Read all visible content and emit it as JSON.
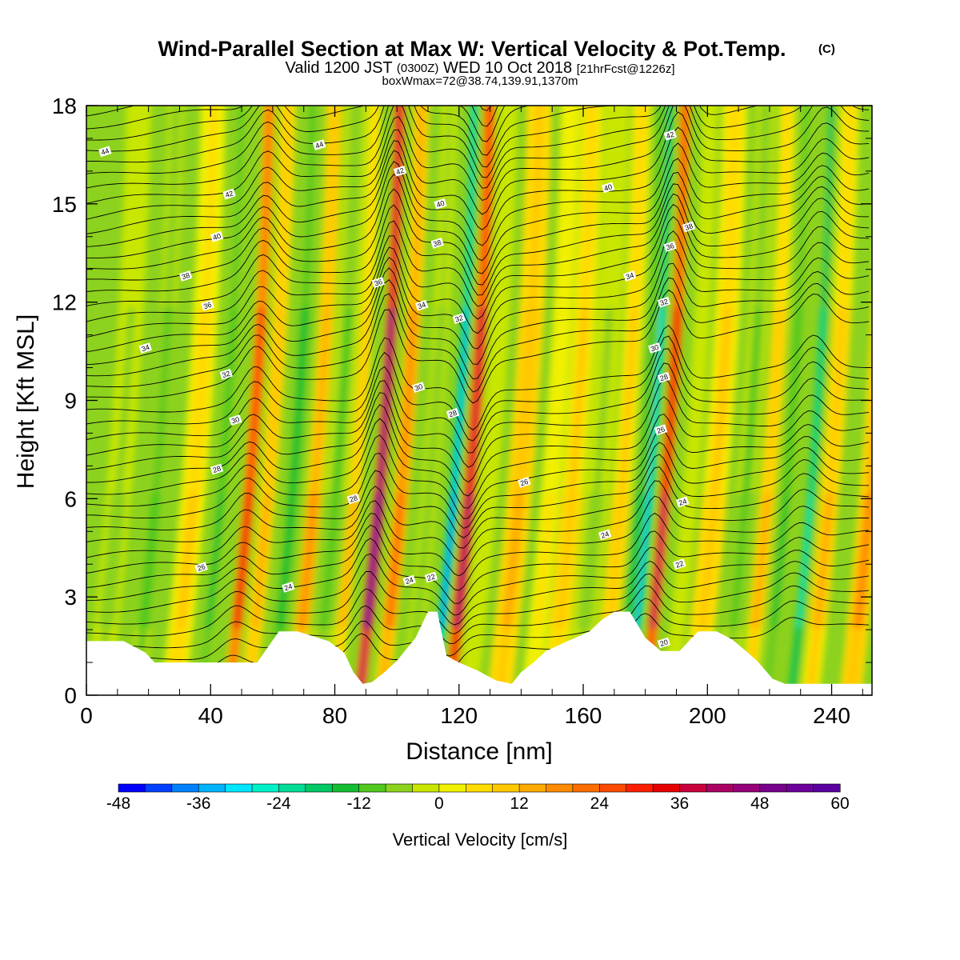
{
  "title": {
    "main": "Wind-Parallel Section at Max W: Vertical Velocity & Pot.Temp.",
    "copyright": "(C)",
    "valid_prefix": "Valid 1200 JST",
    "valid_utc": "(0300Z)",
    "valid_date": "WED 10 Oct 2018",
    "forecast": "[21hrFcst@1226z]",
    "box_info": "boxWmax=72@38.74,139.91,1370m"
  },
  "chart_data": {
    "type": "heatmap",
    "xlabel": "Distance [nm]",
    "ylabel": "Height [Kft MSL]",
    "xlim": [
      0,
      253
    ],
    "ylim": [
      0,
      18
    ],
    "x_ticks": [
      "0",
      "40",
      "80",
      "120",
      "160",
      "200",
      "240"
    ],
    "y_ticks": [
      "0",
      "3",
      "6",
      "9",
      "12",
      "15",
      "18"
    ],
    "x_tick_values": [
      0,
      40,
      80,
      120,
      160,
      200,
      240
    ],
    "y_tick_values": [
      0,
      3,
      6,
      9,
      12,
      15,
      18
    ],
    "colorbar": {
      "title": "Vertical Velocity [cm/s]",
      "min": -48,
      "max": 60,
      "step": 4,
      "labels": [
        "-48",
        "-36",
        "-24",
        "-12",
        "0",
        "12",
        "24",
        "36",
        "48",
        "60"
      ],
      "colors": [
        "#0000ff",
        "#0040ff",
        "#0080ff",
        "#00b4ff",
        "#00e6ff",
        "#00f0c8",
        "#00dc96",
        "#00c864",
        "#14be32",
        "#50c81e",
        "#8cd21e",
        "#c8e600",
        "#f0f000",
        "#ffdc00",
        "#ffc800",
        "#ffaa00",
        "#ff8c00",
        "#ff6e00",
        "#ff4b00",
        "#ff1e00",
        "#e60000",
        "#c8003c",
        "#aa0064",
        "#960078",
        "#78008c",
        "#6e009c",
        "#5a00a0"
      ]
    },
    "velocity_features": [
      {
        "x": 4,
        "width": 8,
        "w": -6
      },
      {
        "x": 16,
        "width": 5,
        "w": -12
      },
      {
        "x": 28,
        "width": 8,
        "w": 8
      },
      {
        "x": 37,
        "width": 4,
        "w": -14
      },
      {
        "x": 46,
        "width": 4,
        "w": 34
      },
      {
        "x": 52,
        "width": 5,
        "w": 14
      },
      {
        "x": 60,
        "width": 6,
        "w": -16
      },
      {
        "x": 67,
        "width": 5,
        "w": 18
      },
      {
        "x": 74,
        "width": 7,
        "w": -10
      },
      {
        "x": 80,
        "width": 4,
        "w": 12
      },
      {
        "x": 88,
        "width": 3.5,
        "w": 60
      },
      {
        "x": 95,
        "width": 5,
        "w": 22
      },
      {
        "x": 104,
        "width": 5,
        "w": -8
      },
      {
        "x": 112,
        "width": 3,
        "w": -40
      },
      {
        "x": 117,
        "width": 4,
        "w": 46
      },
      {
        "x": 123,
        "width": 6,
        "w": -4
      },
      {
        "x": 133,
        "width": 8,
        "w": 14
      },
      {
        "x": 143,
        "width": 6,
        "w": 4
      },
      {
        "x": 150,
        "width": 7,
        "w": 10
      },
      {
        "x": 158,
        "width": 8,
        "w": -6
      },
      {
        "x": 166,
        "width": 6,
        "w": 10
      },
      {
        "x": 172,
        "width": 3,
        "w": -18
      },
      {
        "x": 175,
        "width": 2.5,
        "w": -36
      },
      {
        "x": 180,
        "width": 3.5,
        "w": 42
      },
      {
        "x": 188,
        "width": 5,
        "w": -4
      },
      {
        "x": 196,
        "width": 8,
        "w": 10
      },
      {
        "x": 206,
        "width": 6,
        "w": -10
      },
      {
        "x": 213,
        "width": 5,
        "w": 12
      },
      {
        "x": 219,
        "width": 4,
        "w": -14
      },
      {
        "x": 227,
        "width": 3,
        "w": -26
      },
      {
        "x": 233,
        "width": 6,
        "w": 12
      },
      {
        "x": 246,
        "width": 7,
        "w": 16
      }
    ],
    "terrain": {
      "x": [
        0,
        12,
        19,
        22,
        55,
        62,
        68,
        73,
        78,
        83,
        86,
        89,
        92,
        96,
        100,
        106,
        110,
        113,
        116,
        120,
        126,
        132,
        137,
        140,
        144,
        148,
        155,
        162,
        166,
        170,
        175,
        180,
        185,
        191,
        197,
        203,
        208,
        213,
        216,
        221,
        225,
        235,
        253
      ],
      "y": [
        1.65,
        1.65,
        1.3,
        1.0,
        1.0,
        1.95,
        1.95,
        1.8,
        1.65,
        1.3,
        0.7,
        0.35,
        0.4,
        0.7,
        1.05,
        1.75,
        2.55,
        2.55,
        1.2,
        1.0,
        0.75,
        0.45,
        0.35,
        0.7,
        1.0,
        1.35,
        1.65,
        1.95,
        2.3,
        2.55,
        2.55,
        1.75,
        1.35,
        1.35,
        1.95,
        1.95,
        1.7,
        1.3,
        1.05,
        0.5,
        0.35,
        0.35,
        0.35
      ]
    },
    "isentrope_labels": [
      {
        "x": 6,
        "y": 16.6,
        "text": "44"
      },
      {
        "x": 46,
        "y": 15.3,
        "text": "42"
      },
      {
        "x": 42,
        "y": 14.0,
        "text": "40"
      },
      {
        "x": 32,
        "y": 12.8,
        "text": "38"
      },
      {
        "x": 39,
        "y": 11.9,
        "text": "36"
      },
      {
        "x": 19,
        "y": 10.6,
        "text": "34"
      },
      {
        "x": 45,
        "y": 9.8,
        "text": "32"
      },
      {
        "x": 48,
        "y": 8.4,
        "text": "30"
      },
      {
        "x": 42,
        "y": 6.9,
        "text": "28"
      },
      {
        "x": 37,
        "y": 3.9,
        "text": "26"
      },
      {
        "x": 65,
        "y": 3.3,
        "text": "24"
      },
      {
        "x": 75,
        "y": 16.8,
        "text": "44"
      },
      {
        "x": 101,
        "y": 16.0,
        "text": "42"
      },
      {
        "x": 114,
        "y": 15.0,
        "text": "40"
      },
      {
        "x": 113,
        "y": 13.8,
        "text": "38"
      },
      {
        "x": 94,
        "y": 12.6,
        "text": "36"
      },
      {
        "x": 108,
        "y": 11.9,
        "text": "34"
      },
      {
        "x": 120,
        "y": 11.5,
        "text": "32"
      },
      {
        "x": 107,
        "y": 9.4,
        "text": "30"
      },
      {
        "x": 118,
        "y": 8.6,
        "text": "28"
      },
      {
        "x": 86,
        "y": 6.0,
        "text": "28"
      },
      {
        "x": 141,
        "y": 6.5,
        "text": "26"
      },
      {
        "x": 104,
        "y": 3.5,
        "text": "24"
      },
      {
        "x": 111,
        "y": 3.6,
        "text": "22"
      },
      {
        "x": 167,
        "y": 4.9,
        "text": "24"
      },
      {
        "x": 188,
        "y": 17.1,
        "text": "42"
      },
      {
        "x": 168,
        "y": 15.5,
        "text": "40"
      },
      {
        "x": 194,
        "y": 14.3,
        "text": "38"
      },
      {
        "x": 188,
        "y": 13.7,
        "text": "36"
      },
      {
        "x": 175,
        "y": 12.8,
        "text": "34"
      },
      {
        "x": 186,
        "y": 12.0,
        "text": "32"
      },
      {
        "x": 183,
        "y": 10.6,
        "text": "30"
      },
      {
        "x": 186,
        "y": 9.7,
        "text": "28"
      },
      {
        "x": 185,
        "y": 8.1,
        "text": "26"
      },
      {
        "x": 192,
        "y": 5.9,
        "text": "24"
      },
      {
        "x": 191,
        "y": 4.0,
        "text": "22"
      },
      {
        "x": 186,
        "y": 1.6,
        "text": "20"
      }
    ]
  }
}
